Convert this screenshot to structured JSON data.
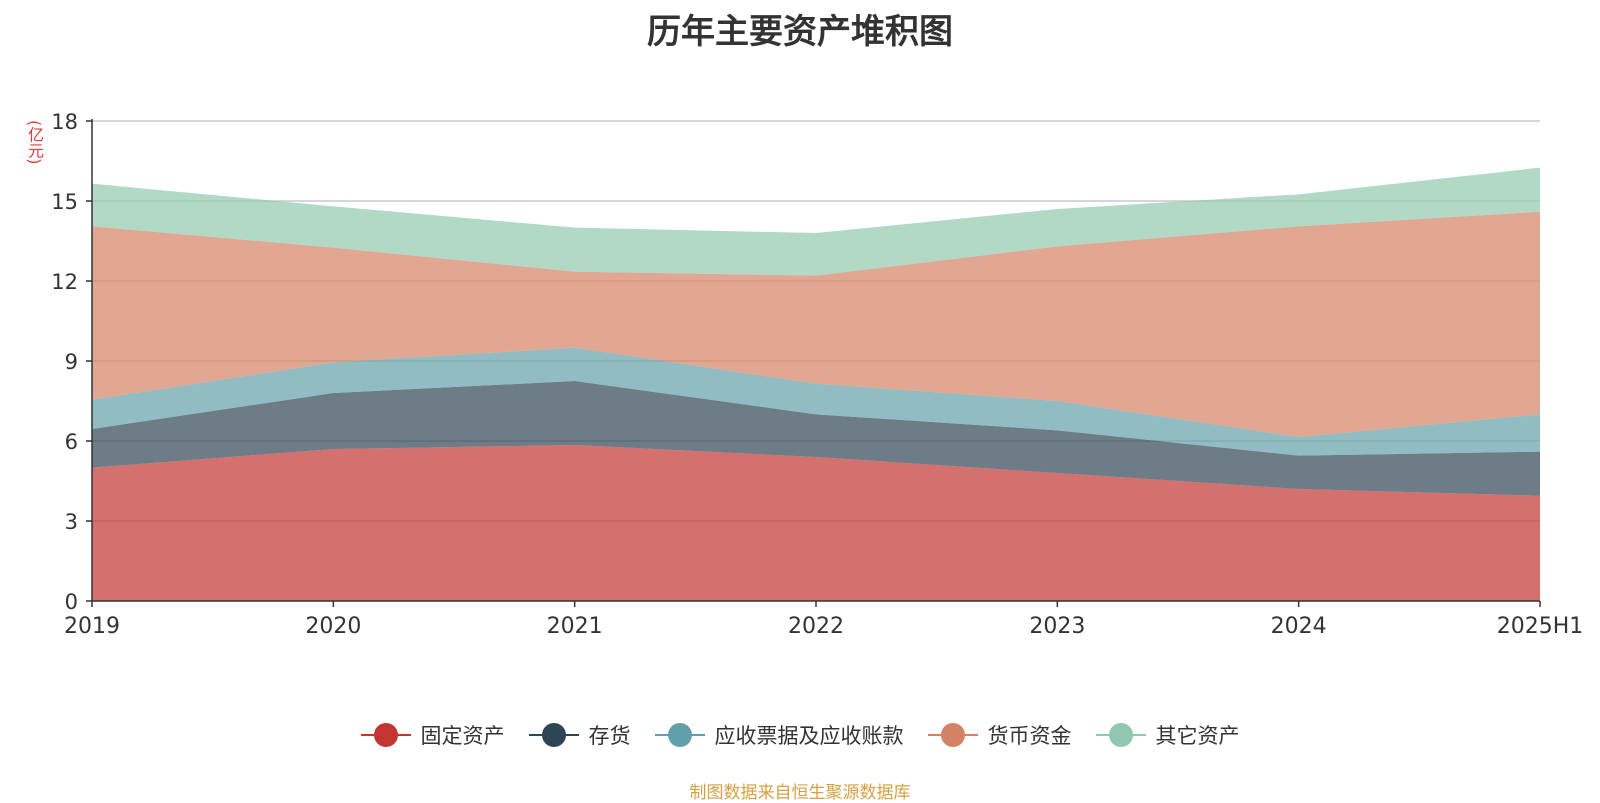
{
  "chart_data": {
    "type": "area",
    "stacked": true,
    "title": "历年主要资产堆积图",
    "ylabel": "(亿元)",
    "xlabel": "",
    "categories": [
      "2019",
      "2020",
      "2021",
      "2022",
      "2023",
      "2024",
      "2025H1"
    ],
    "ylim": [
      0,
      18
    ],
    "yticks": [
      0,
      3,
      6,
      9,
      12,
      15,
      18
    ],
    "grid": true,
    "legend_position": "bottom",
    "series": [
      {
        "name": "固定资产",
        "color": "#c23531",
        "values": [
          5.0,
          5.7,
          5.85,
          5.4,
          4.8,
          4.2,
          3.95
        ]
      },
      {
        "name": "存货",
        "color": "#2f4554",
        "values": [
          1.45,
          2.1,
          2.4,
          1.6,
          1.6,
          1.25,
          1.65
        ]
      },
      {
        "name": "应收票据及应收账款",
        "color": "#61a0a8",
        "values": [
          1.1,
          1.15,
          1.25,
          1.15,
          1.1,
          0.7,
          1.4
        ]
      },
      {
        "name": "货币资金",
        "color": "#d48265",
        "values": [
          6.5,
          4.3,
          2.85,
          4.05,
          5.8,
          7.9,
          7.6
        ]
      },
      {
        "name": "其它资产",
        "color": "#91c7ae",
        "values": [
          1.6,
          1.55,
          1.65,
          1.6,
          1.4,
          1.2,
          1.65
        ]
      }
    ]
  },
  "source_text": "制图数据来自恒生聚源数据库"
}
